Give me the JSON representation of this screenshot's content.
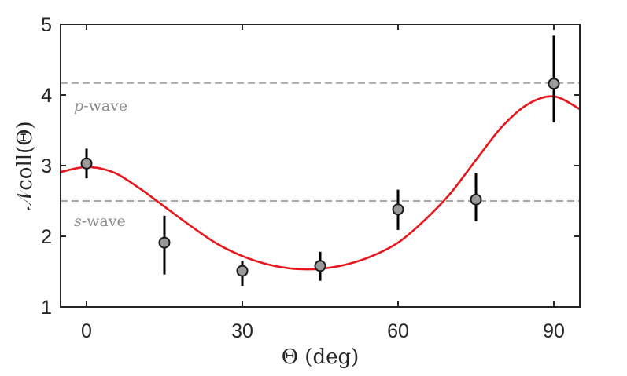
{
  "chart_data": {
    "type": "scatter",
    "xlabel": "Θ (deg)",
    "ylabel": "𝒩coll(Θ)",
    "xlim": [
      -5,
      95
    ],
    "ylim": [
      1,
      5
    ],
    "xticks": [
      "0",
      "30",
      "60",
      "90"
    ],
    "yticks": [
      "1",
      "2",
      "3",
      "4",
      "5"
    ],
    "grid": false,
    "legend": "none",
    "points": {
      "x": [
        0,
        15,
        30,
        45,
        60,
        75,
        90
      ],
      "y": [
        3.03,
        1.91,
        1.51,
        1.58,
        2.38,
        2.52,
        4.16
      ],
      "err_low": [
        0.21,
        0.45,
        0.21,
        0.21,
        0.29,
        0.31,
        0.55
      ],
      "err_high": [
        0.21,
        0.38,
        0.14,
        0.2,
        0.28,
        0.38,
        0.68
      ]
    },
    "fit_curve": {
      "x": [
        -5,
        0,
        5,
        10,
        15,
        20,
        25,
        30,
        35,
        40,
        45,
        50,
        55,
        60,
        65,
        70,
        75,
        80,
        85,
        90,
        95
      ],
      "y": [
        2.91,
        2.98,
        2.91,
        2.69,
        2.42,
        2.15,
        1.9,
        1.72,
        1.6,
        1.54,
        1.54,
        1.6,
        1.72,
        1.91,
        2.22,
        2.6,
        3.08,
        3.55,
        3.87,
        3.98,
        3.8
      ]
    },
    "reference_lines": [
      {
        "label_italic": "p",
        "label_rest": "-wave",
        "y": 4.17
      },
      {
        "label_italic": "s",
        "label_rest": "-wave",
        "y": 2.5
      }
    ],
    "colors": {
      "fit": "#e8161b",
      "marker_fill": "#999999",
      "marker_edge": "#1a1a1a",
      "error_bar": "#000000",
      "reference": "#a6a6a6",
      "axis": "#262626",
      "label_text": "#8c8c8c"
    }
  }
}
